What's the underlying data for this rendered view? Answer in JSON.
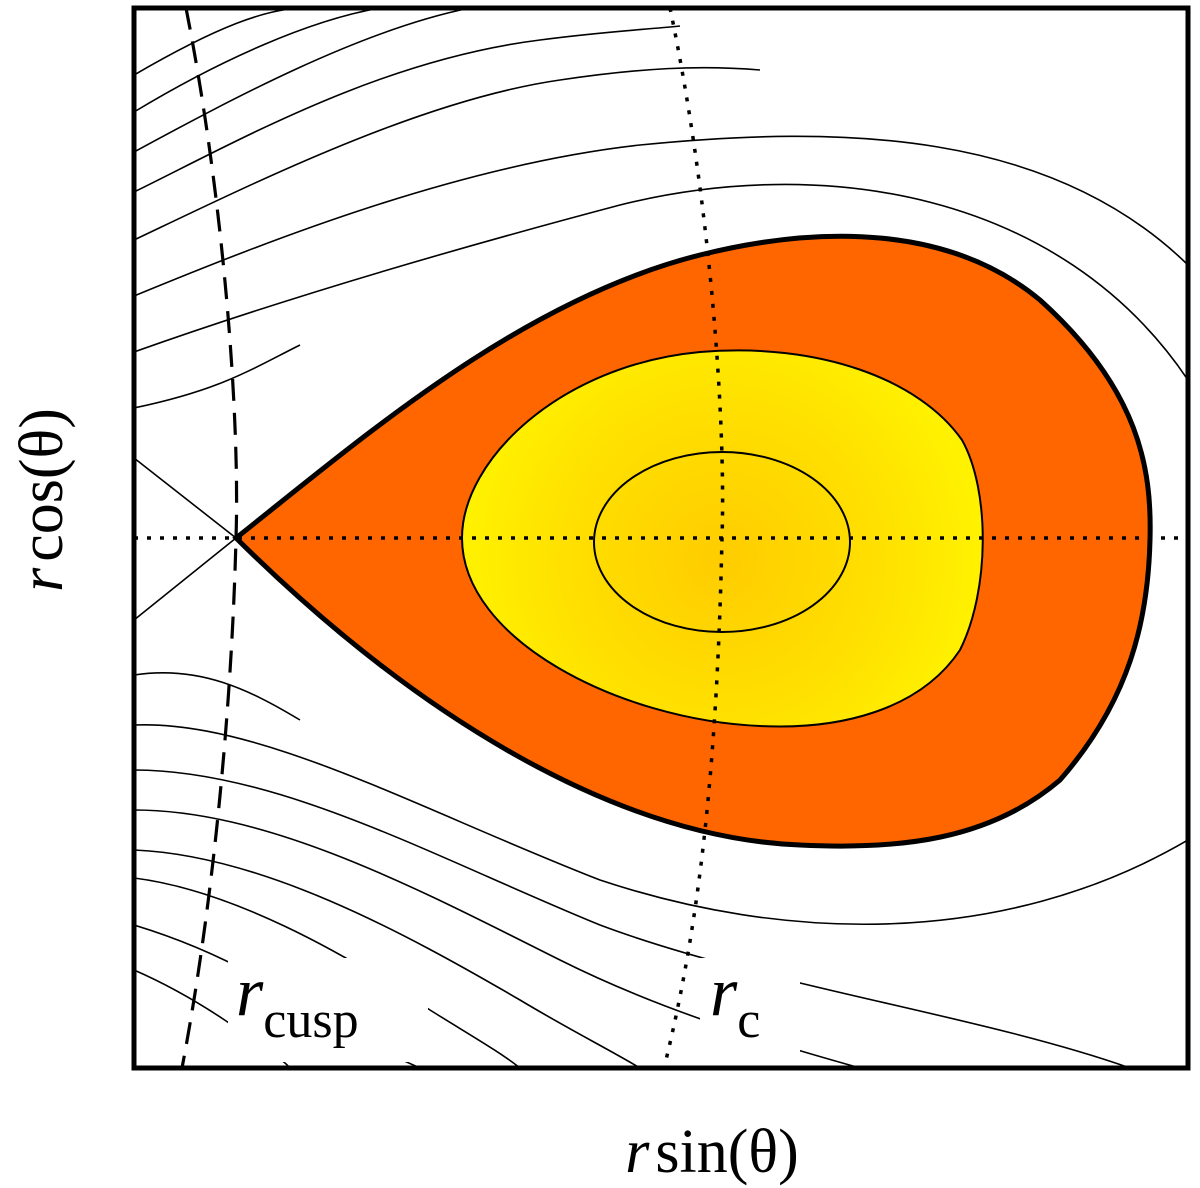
{
  "figure": {
    "x_axis_label": {
      "var": "r",
      "func": "sin(θ)"
    },
    "y_axis_label": {
      "var": "r",
      "func": "cos(θ)"
    },
    "labels": {
      "r_cusp": {
        "var": "r",
        "sub": "cusp"
      },
      "r_c": {
        "var": "r",
        "sub": "c"
      }
    },
    "colors": {
      "torus_outer_fill": "#ff6600",
      "torus_inner_fill": "#ffee00",
      "torus_core_fill": "#ffcc00",
      "contour_stroke": "#000000",
      "background": "#ffffff"
    }
  }
}
